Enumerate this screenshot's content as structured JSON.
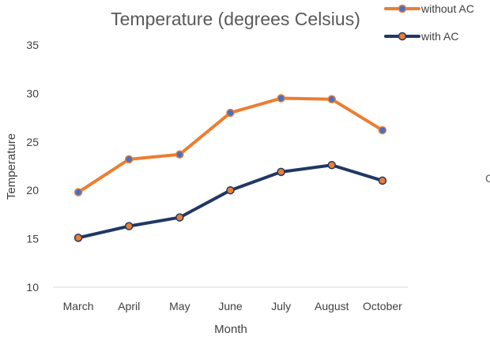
{
  "chart_data": {
    "type": "line",
    "title": "Temperature (degrees Celsius)",
    "xlabel": "Month",
    "ylabel": "Temperature",
    "categories": [
      "March",
      "April",
      "May",
      "June",
      "July",
      "August",
      "October"
    ],
    "ylim": [
      10,
      35
    ],
    "yticks": [
      10,
      15,
      20,
      25,
      30,
      35
    ],
    "grid": false,
    "legend_position": "top-right",
    "series": [
      {
        "name": "without AC",
        "values": [
          19.8,
          23.2,
          23.7,
          28.0,
          29.5,
          29.4,
          26.2
        ],
        "line_color": "#ED7D31",
        "marker_color": "#4472C4"
      },
      {
        "name": "with AC",
        "values": [
          15.1,
          16.3,
          17.2,
          20.0,
          21.9,
          22.6,
          21.0
        ],
        "line_color": "#203864",
        "marker_color": "#ED7D31"
      }
    ]
  },
  "edge_text": "C"
}
